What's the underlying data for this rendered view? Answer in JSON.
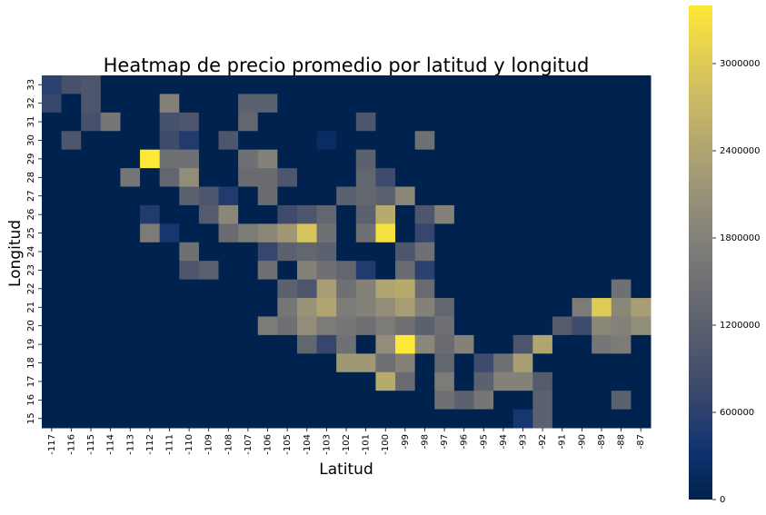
{
  "chart_data": {
    "type": "heatmap",
    "title": "Heatmap de precio promedio por latitud y longitud",
    "xlabel": "Latitud",
    "ylabel": "Longitud",
    "x_categories": [
      "-117",
      "-116",
      "-115",
      "-114",
      "-113",
      "-112",
      "-111",
      "-110",
      "-109",
      "-108",
      "-107",
      "-106",
      "-105",
      "-104",
      "-103",
      "-102",
      "-101",
      "-100",
      "-99",
      "-98",
      "-97",
      "-96",
      "-95",
      "-94",
      "-93",
      "-92",
      "-91",
      "-90",
      "-89",
      "-88",
      "-87"
    ],
    "y_categories": [
      "33",
      "32",
      "31",
      "30",
      "29",
      "28",
      "27",
      "26",
      "25",
      "24",
      "23",
      "22",
      "21",
      "20",
      "19",
      "18",
      "17",
      "16",
      "15"
    ],
    "colormap": "cividis",
    "colorbar": {
      "range": [
        0,
        3400000
      ],
      "ticks": [
        0,
        600000,
        1200000,
        1800000,
        2400000,
        3000000
      ],
      "tick_labels": [
        "0",
        "600000",
        "1200000",
        "1800000",
        "2400000",
        "3000000"
      ]
    },
    "values": [
      [
        600000,
        900000,
        1000000,
        0,
        0,
        0,
        0,
        0,
        0,
        0,
        0,
        0,
        0,
        0,
        0,
        0,
        0,
        0,
        0,
        0,
        0,
        0,
        0,
        0,
        0,
        0,
        0,
        0,
        0,
        0,
        0
      ],
      [
        700000,
        0,
        1000000,
        0,
        0,
        0,
        1800000,
        0,
        0,
        0,
        1200000,
        1200000,
        0,
        0,
        0,
        0,
        0,
        0,
        0,
        0,
        0,
        0,
        0,
        0,
        0,
        0,
        0,
        0,
        0,
        0,
        0
      ],
      [
        0,
        0,
        900000,
        1600000,
        0,
        0,
        900000,
        1000000,
        0,
        0,
        1300000,
        0,
        0,
        0,
        0,
        0,
        1000000,
        0,
        0,
        0,
        0,
        0,
        0,
        0,
        0,
        0,
        0,
        0,
        0,
        0,
        0
      ],
      [
        0,
        1000000,
        0,
        0,
        0,
        0,
        800000,
        500000,
        0,
        1000000,
        0,
        0,
        0,
        0,
        200000,
        0,
        0,
        0,
        0,
        1500000,
        0,
        0,
        0,
        0,
        0,
        0,
        0,
        0,
        0,
        0,
        0
      ],
      [
        0,
        0,
        0,
        0,
        0,
        3400000,
        1500000,
        1500000,
        0,
        0,
        1500000,
        1800000,
        0,
        0,
        0,
        0,
        1200000,
        0,
        0,
        0,
        0,
        0,
        0,
        0,
        0,
        0,
        0,
        0,
        0,
        0,
        0
      ],
      [
        0,
        0,
        0,
        0,
        1600000,
        0,
        1300000,
        2000000,
        0,
        0,
        1400000,
        1400000,
        1000000,
        0,
        0,
        0,
        1300000,
        800000,
        0,
        0,
        0,
        0,
        0,
        0,
        0,
        0,
        0,
        0,
        0,
        0,
        0
      ],
      [
        0,
        0,
        0,
        0,
        0,
        0,
        0,
        1200000,
        1000000,
        500000,
        0,
        1400000,
        0,
        0,
        0,
        1200000,
        1300000,
        1200000,
        1900000,
        0,
        0,
        0,
        0,
        0,
        0,
        0,
        0,
        0,
        0,
        0,
        0
      ],
      [
        0,
        0,
        0,
        0,
        0,
        500000,
        0,
        0,
        1100000,
        1900000,
        0,
        0,
        800000,
        1000000,
        1300000,
        0,
        1200000,
        2500000,
        0,
        1000000,
        1800000,
        0,
        0,
        0,
        0,
        0,
        0,
        0,
        0,
        0,
        0
      ],
      [
        0,
        0,
        0,
        0,
        0,
        1700000,
        400000,
        0,
        0,
        1400000,
        1700000,
        1900000,
        2200000,
        2900000,
        1500000,
        0,
        1500000,
        3300000,
        0,
        700000,
        0,
        0,
        0,
        0,
        0,
        0,
        0,
        0,
        0,
        0,
        0
      ],
      [
        0,
        0,
        0,
        0,
        0,
        0,
        0,
        1500000,
        0,
        0,
        0,
        700000,
        1200000,
        1300000,
        1200000,
        0,
        0,
        0,
        1000000,
        1500000,
        0,
        0,
        0,
        0,
        0,
        0,
        0,
        0,
        0,
        0,
        0
      ],
      [
        0,
        0,
        0,
        0,
        0,
        0,
        0,
        1000000,
        1200000,
        0,
        0,
        1500000,
        0,
        1800000,
        1500000,
        1300000,
        500000,
        0,
        1400000,
        600000,
        0,
        0,
        0,
        0,
        0,
        0,
        0,
        0,
        0,
        0,
        0
      ],
      [
        0,
        0,
        0,
        0,
        0,
        0,
        0,
        0,
        0,
        0,
        0,
        0,
        1200000,
        1000000,
        2300000,
        1500000,
        1800000,
        2400000,
        2500000,
        1400000,
        0,
        0,
        0,
        0,
        0,
        0,
        0,
        0,
        0,
        1500000,
        0
      ],
      [
        0,
        0,
        0,
        0,
        0,
        0,
        0,
        0,
        0,
        0,
        0,
        0,
        1600000,
        2100000,
        2400000,
        1700000,
        1800000,
        2000000,
        2300000,
        1800000,
        1300000,
        0,
        0,
        0,
        0,
        0,
        0,
        1700000,
        3000000,
        1900000,
        2300000
      ],
      [
        0,
        0,
        0,
        0,
        0,
        0,
        0,
        0,
        0,
        0,
        0,
        1700000,
        1500000,
        2000000,
        1700000,
        1600000,
        1500000,
        1700000,
        1500000,
        1200000,
        1500000,
        0,
        0,
        0,
        0,
        0,
        1100000,
        800000,
        1900000,
        1800000,
        2000000
      ],
      [
        0,
        0,
        0,
        0,
        0,
        0,
        0,
        0,
        0,
        0,
        0,
        0,
        0,
        1300000,
        700000,
        1500000,
        0,
        2000000,
        3400000,
        1900000,
        1400000,
        1800000,
        0,
        0,
        1000000,
        2400000,
        0,
        0,
        1600000,
        1700000,
        0
      ],
      [
        0,
        0,
        0,
        0,
        0,
        0,
        0,
        0,
        0,
        0,
        0,
        0,
        0,
        0,
        0,
        2200000,
        2200000,
        1500000,
        1800000,
        0,
        1300000,
        0,
        800000,
        1500000,
        2300000,
        0,
        0,
        0,
        0,
        0,
        0
      ],
      [
        0,
        0,
        0,
        0,
        0,
        0,
        0,
        0,
        0,
        0,
        0,
        0,
        0,
        0,
        0,
        0,
        0,
        2500000,
        1400000,
        0,
        1700000,
        0,
        1200000,
        1800000,
        1800000,
        1100000,
        0,
        0,
        0,
        0,
        0
      ],
      [
        0,
        0,
        0,
        0,
        0,
        0,
        0,
        0,
        0,
        0,
        0,
        0,
        0,
        0,
        0,
        0,
        0,
        0,
        0,
        0,
        1500000,
        1200000,
        1600000,
        0,
        0,
        1200000,
        0,
        0,
        0,
        1200000,
        0
      ],
      [
        0,
        0,
        0,
        0,
        0,
        0,
        0,
        0,
        0,
        0,
        0,
        0,
        0,
        0,
        0,
        0,
        0,
        0,
        0,
        0,
        0,
        0,
        0,
        0,
        400000,
        1200000,
        0,
        0,
        0,
        0,
        0
      ]
    ]
  }
}
